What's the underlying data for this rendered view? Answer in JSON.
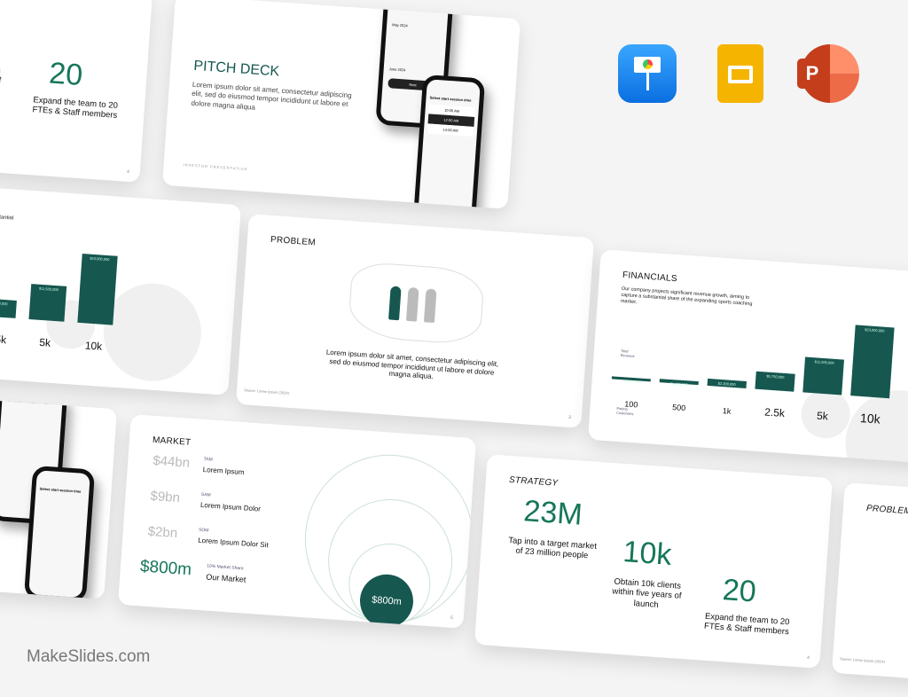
{
  "apps": [
    {
      "name": "Keynote",
      "color": "#1a8cf0"
    },
    {
      "name": "Google Slides",
      "color": "#f5b400"
    },
    {
      "name": "PowerPoint",
      "color": "#d24726"
    }
  ],
  "brand": "MakeSlides.com",
  "accent": "#16574f",
  "strategy": {
    "title": "STRATEGY",
    "stats": [
      {
        "value": "23M",
        "caption": "Tap into a target market of 23 million people"
      },
      {
        "value": "10k",
        "caption": "Obtain 10k clients within five years of launch"
      },
      {
        "value": "20",
        "caption": "Expand the team to 20 FTEs & Staff members"
      }
    ],
    "page": "4"
  },
  "pitch": {
    "title": "PITCH DECK",
    "body": "Lorem ipsum dolor sit amet, consectetur adipiscing elit, sed do eiusmod tempor incididunt ut labore et dolore magna aliqua",
    "footer": "INVESTOR PRESENTATION",
    "phone1": {
      "title": "Select start session date",
      "month1": "May 2024",
      "month2": "June 2024",
      "button": "Next"
    },
    "phone2": {
      "title": "Select start session time",
      "slots": [
        "10:00 AM",
        "12:00 AM",
        "14:00 AM"
      ]
    }
  },
  "financials": {
    "title": "FINANCIALS",
    "body": "Our company projects significant revenue growth, aiming to capture a substantial share of the expanding sports coaching market.",
    "revenue_label": "Total Revenue",
    "customers_label": "Paying Customers",
    "customers": [
      "100",
      "500",
      "1k",
      "2.5k",
      "5k",
      "10k"
    ],
    "revenue": [
      "$230,000",
      "$1,150,000",
      "$2,300,000",
      "$5,750,000",
      "$11,500,000",
      "$23,000,000"
    ],
    "revenue_values": [
      230000,
      1150000,
      2300000,
      5750000,
      11500000,
      23000000
    ]
  },
  "problem": {
    "title": "PROBLEM",
    "body": "Lorem ipsum dolor sit amet, consectetur adipiscing elit, sed do eiusmod tempor incididunt ut labore et dolore magna aliqua.",
    "source": "Source: Lorem Ipsum (2024)",
    "page": "3"
  },
  "market": {
    "title": "MARKET",
    "rows": [
      {
        "value": "$44bn",
        "label": "TAM",
        "name": "Lorem Ipsum"
      },
      {
        "value": "$9bn",
        "label": "SAM",
        "name": "Lorem Ipsum Dolor"
      },
      {
        "value": "$2bn",
        "label": "SOM",
        "name": "Lorem Ipsum Dolor Sit"
      },
      {
        "value": "$800m",
        "label": "10% Market Share",
        "name": "Our Market"
      }
    ],
    "circle_value": "$800m",
    "page": "5"
  }
}
